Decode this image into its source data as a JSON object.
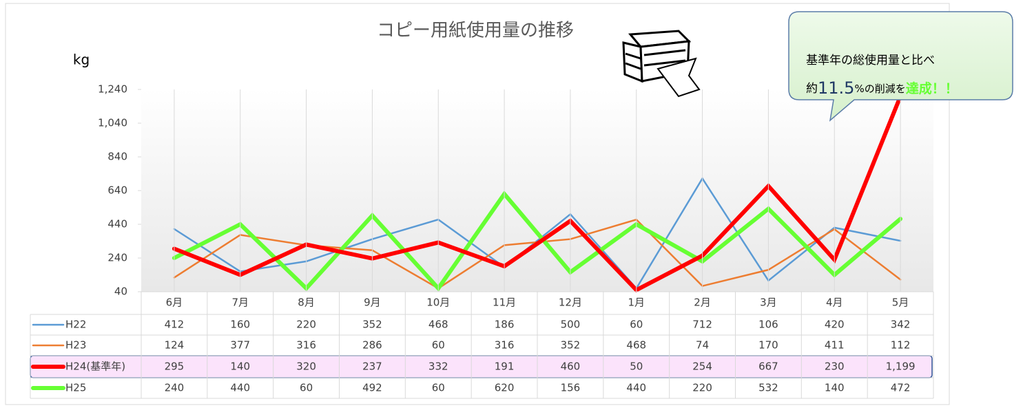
{
  "chart_data": {
    "type": "line",
    "title": "コピー用紙使用量の推移",
    "y_label": "kg",
    "categories": [
      "6月",
      "7月",
      "8月",
      "9月",
      "10月",
      "11月",
      "12月",
      "1月",
      "2月",
      "3月",
      "4月",
      "5月"
    ],
    "series": [
      {
        "name": "H22",
        "color": "#5b9bd5",
        "line_width": 2.5,
        "values": [
          412,
          160,
          220,
          352,
          468,
          186,
          500,
          60,
          712,
          106,
          420,
          342
        ]
      },
      {
        "name": "H23",
        "color": "#ed7d31",
        "line_width": 2.5,
        "values": [
          124,
          377,
          316,
          286,
          60,
          316,
          352,
          468,
          74,
          170,
          411,
          112
        ]
      },
      {
        "name": "H24(基準年)",
        "color": "#ff0000",
        "line_width": 6,
        "values": [
          295,
          140,
          320,
          237,
          332,
          191,
          460,
          50,
          254,
          667,
          230,
          1199
        ],
        "value_labels": [
          "295",
          "140",
          "320",
          "237",
          "332",
          "191",
          "460",
          "50",
          "254",
          "667",
          "230",
          "1,199"
        ]
      },
      {
        "name": "H25",
        "color": "#66ff33",
        "line_width": 6,
        "values": [
          240,
          440,
          60,
          492,
          60,
          620,
          156,
          440,
          220,
          532,
          140,
          472
        ]
      }
    ],
    "draw_order": [
      0,
      1,
      3,
      2
    ],
    "highlight_series": 2,
    "ylim": [
      40,
      1240
    ],
    "yticks": [
      40,
      240,
      440,
      640,
      840,
      {
        "value": 1040,
        "label": "1,040"
      },
      {
        "value": 1240,
        "label": "1,240"
      }
    ],
    "callout": {
      "line1": "基準年の総使用量と比べ",
      "prefix": "約",
      "figure": "11.5",
      "suffix": "%の削減を",
      "highlight": "達成！！"
    }
  }
}
